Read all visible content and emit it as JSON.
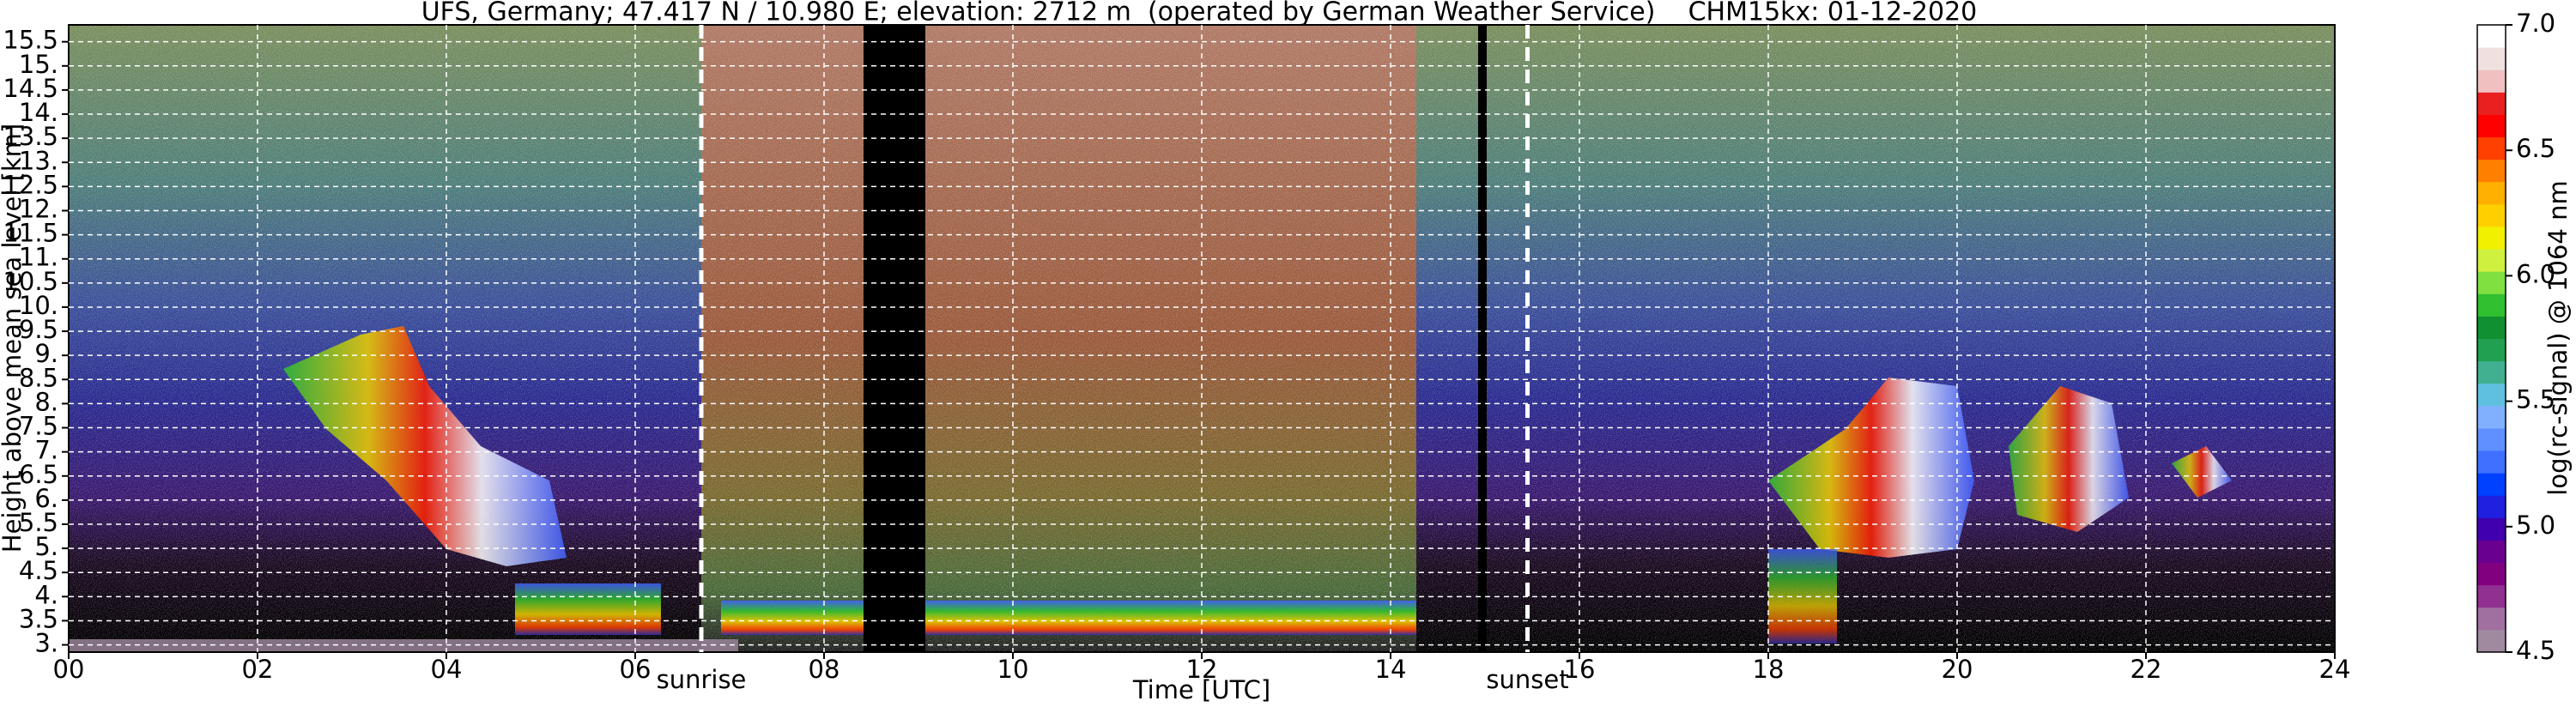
{
  "chart_data": {
    "type": "heatmap",
    "title": "UFS, Germany; 47.417 N / 10.980 E; elevation: 2712 m  (operated by German Weather Service)    CHM15kx: 01-12-2020",
    "x_label": "Time [UTC]",
    "y_label": "Height above mean sea level [km]",
    "xlim": [
      0,
      24
    ],
    "xticks": [
      {
        "value": 0,
        "label": "00"
      },
      {
        "value": 2,
        "label": "02"
      },
      {
        "value": 4,
        "label": "04"
      },
      {
        "value": 6,
        "label": "06"
      },
      {
        "value": 8,
        "label": "08"
      },
      10,
      12,
      14,
      16,
      18,
      20,
      22,
      24
    ],
    "ylim": [
      2.85,
      15.85
    ],
    "yticks": [
      {
        "value": 3,
        "label": "3."
      },
      3.5,
      {
        "value": 4,
        "label": "4."
      },
      4.5,
      {
        "value": 5,
        "label": "5."
      },
      5.5,
      {
        "value": 6,
        "label": "6."
      },
      6.5,
      {
        "value": 7,
        "label": "7."
      },
      7.5,
      {
        "value": 8,
        "label": "8."
      },
      8.5,
      {
        "value": 9,
        "label": "9."
      },
      9.5,
      {
        "value": 10,
        "label": "10."
      },
      10.5,
      {
        "value": 11,
        "label": "11."
      },
      11.5,
      {
        "value": 12,
        "label": "12."
      },
      12.5,
      {
        "value": 13,
        "label": "13."
      },
      13.5,
      {
        "value": 14,
        "label": "14."
      },
      14.5,
      {
        "value": 15,
        "label": "15."
      },
      15.5
    ],
    "grid": true,
    "annotations": [
      {
        "text": "sunrise",
        "x": 6.7
      },
      {
        "text": "sunset",
        "x": 15.45
      }
    ],
    "colorbar": {
      "label": "log(rc-signal) @ 1064 nm",
      "lim": [
        4.5,
        7.0
      ],
      "ticks": [
        {
          "value": 4.5,
          "label": "4.5"
        },
        {
          "value": 5,
          "label": "5.0"
        },
        {
          "value": 5.5,
          "label": "5.5"
        },
        {
          "value": 6,
          "label": "6.0"
        },
        {
          "value": 6.5,
          "label": "6.5"
        },
        {
          "value": 7,
          "label": "7.0"
        }
      ],
      "colors": [
        "#a08aa0",
        "#a070a0",
        "#903090",
        "#800080",
        "#6a0090",
        "#4000b0",
        "#2020e0",
        "#0040ff",
        "#4070ff",
        "#6090ff",
        "#80b0ff",
        "#60c0e0",
        "#40b090",
        "#20a050",
        "#109030",
        "#30c030",
        "#80e040",
        "#d0f040",
        "#f0f000",
        "#ffd000",
        "#ffb000",
        "#ff8000",
        "#ff4000",
        "#ff0000",
        "#e82020",
        "#f0c0c0",
        "#f0e0e0",
        "#ffffff"
      ]
    }
  }
}
